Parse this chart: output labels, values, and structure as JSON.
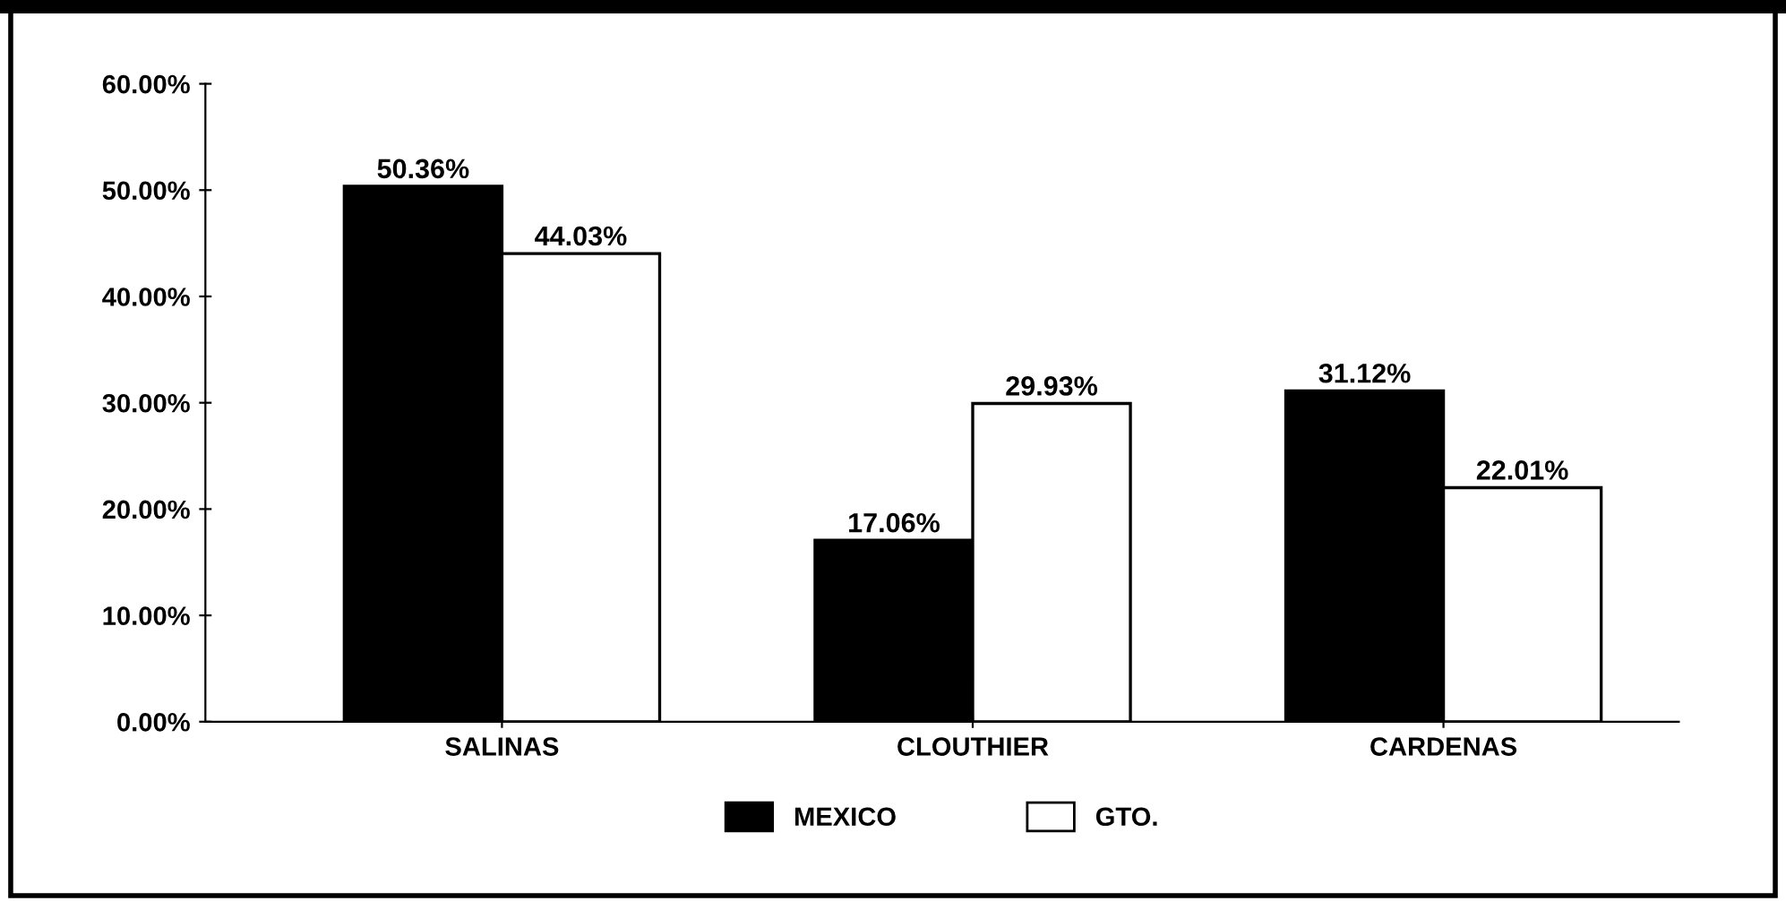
{
  "chart_data": {
    "type": "bar",
    "categories": [
      "SALINAS",
      "CLOUTHIER",
      "CARDENAS"
    ],
    "series": [
      {
        "name": "MEXICO",
        "color": "#000000",
        "values": [
          50.36,
          17.06,
          31.12
        ],
        "value_labels": [
          "50.36%",
          "17.06%",
          "31.12%"
        ]
      },
      {
        "name": "GTO.",
        "color": "#ffffff",
        "values": [
          44.03,
          29.93,
          22.01
        ],
        "value_labels": [
          "44.03%",
          "29.93%",
          "22.01%"
        ]
      }
    ],
    "ylim": [
      0,
      60
    ],
    "yticks": [
      {
        "value": 0,
        "label": "0.00%"
      },
      {
        "value": 10,
        "label": "10.00%"
      },
      {
        "value": 20,
        "label": "20.00%"
      },
      {
        "value": 30,
        "label": "30.00%"
      },
      {
        "value": 40,
        "label": "40.00%"
      },
      {
        "value": 50,
        "label": "50.00%"
      },
      {
        "value": 60,
        "label": "60.00%"
      }
    ],
    "grid": false,
    "legend": "bottom"
  }
}
